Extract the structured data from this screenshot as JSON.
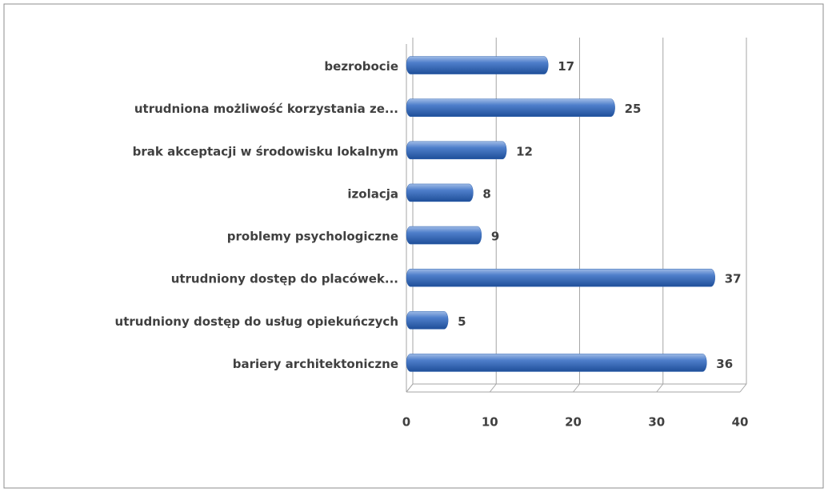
{
  "chart_data": {
    "type": "bar",
    "orientation": "horizontal",
    "categories": [
      "bezrobocie",
      "utrudniona możliwość korzystania ze...",
      "brak akceptacji w środowisku lokalnym",
      "izolacja",
      "problemy psychologiczne",
      "utrudniony dostęp do placówek...",
      "utrudniony dostęp do usług opiekuńczych",
      "bariery architektoniczne"
    ],
    "values": [
      17,
      25,
      12,
      8,
      9,
      37,
      5,
      36
    ],
    "color": "#2e62b0",
    "xlim": [
      0,
      40
    ],
    "xticks": [
      0,
      10,
      20,
      30,
      40
    ],
    "grid": true
  }
}
